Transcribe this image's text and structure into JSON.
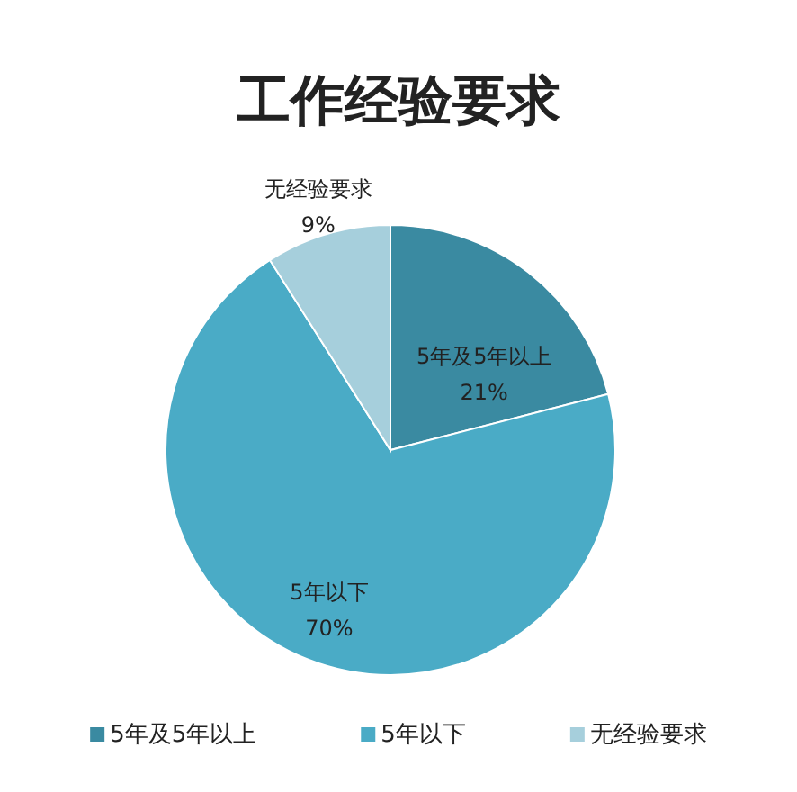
{
  "chart_data": {
    "type": "pie",
    "title": "工作经验要求",
    "categories": [
      "5年及5年以上",
      "5年以下",
      "无经验要求"
    ],
    "values": [
      21,
      70,
      9
    ],
    "value_labels": [
      "21%",
      "70%",
      "9%"
    ],
    "colors": [
      "#3a8aa1",
      "#4aabc6",
      "#a6cfdc"
    ],
    "legend": "bottom"
  }
}
